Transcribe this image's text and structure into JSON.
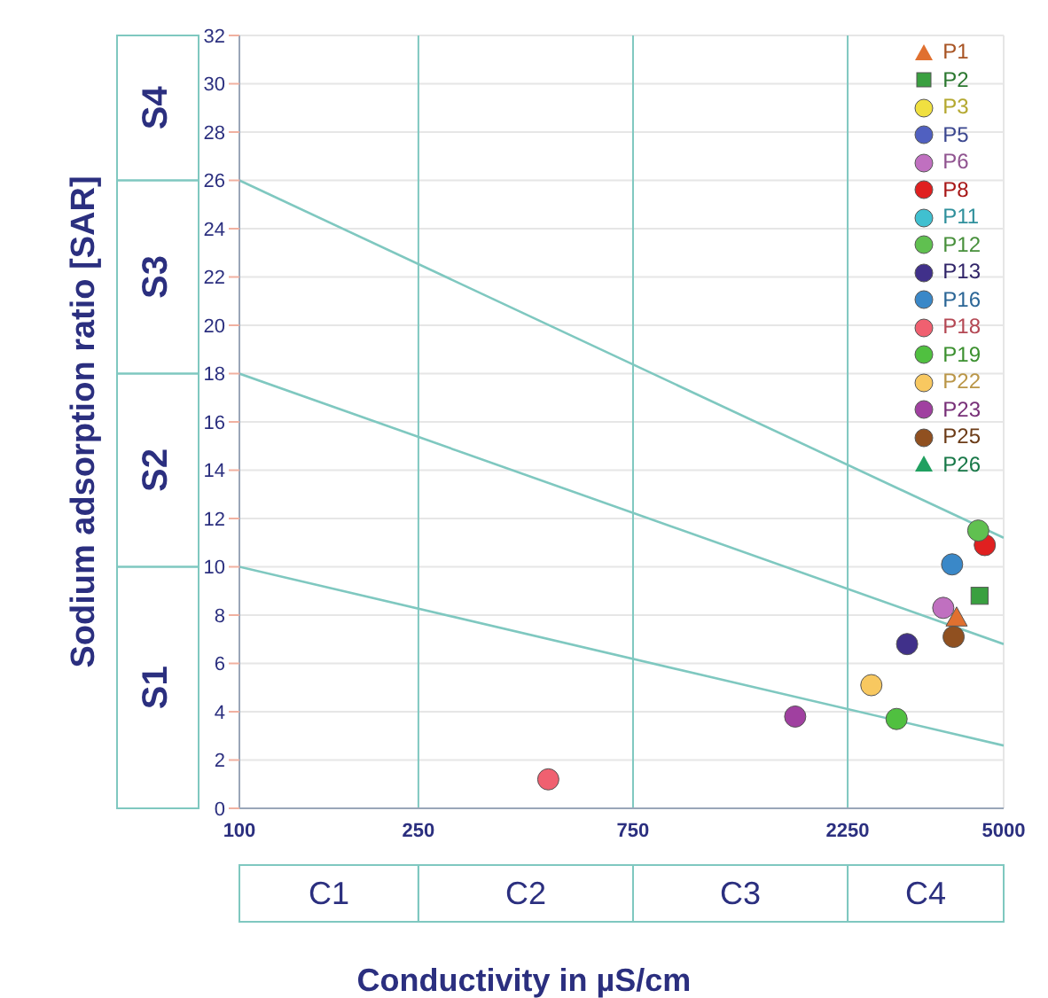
{
  "chart_data": {
    "type": "scatter",
    "xlabel": "Conductivity in µS/cm",
    "ylabel": "Sodium adsorption ratio [SAR]",
    "log": "x",
    "grid": "y",
    "legend": "top right",
    "xlim": [
      100,
      5000
    ],
    "xticks": [
      100,
      250,
      750,
      2250,
      5000
    ],
    "ylim": [
      0,
      32
    ],
    "yticks": [
      0,
      2,
      4,
      6,
      8,
      10,
      12,
      14,
      16,
      18,
      20,
      22,
      24,
      26,
      28,
      30,
      32
    ],
    "series": [
      {
        "name": "P1",
        "color": "#e07030",
        "marker": "triangle",
        "x": [
          3930
        ],
        "values": [
          7.9
        ]
      },
      {
        "name": "P2",
        "color": "#3aa040",
        "marker": "square",
        "x": [
          4420
        ],
        "values": [
          8.8
        ]
      },
      {
        "name": "P3",
        "color": "#f0e040",
        "x": [
          null
        ],
        "values": [
          null
        ]
      },
      {
        "name": "P5",
        "color": "#5060c0",
        "marker": "circle",
        "x": [
          null
        ],
        "values": [
          null
        ]
      },
      {
        "name": "P6",
        "color": "#c070c0",
        "marker": "circle",
        "x": [
          3670
        ],
        "values": [
          8.3
        ]
      },
      {
        "name": "P8",
        "color": "#e02020",
        "marker": "circle",
        "x": [
          4540
        ],
        "values": [
          10.9
        ]
      },
      {
        "name": "P11",
        "color": "#40c0d0",
        "marker": "circle",
        "x": [
          null
        ],
        "values": [
          null
        ]
      },
      {
        "name": "P12",
        "color": "#60c050",
        "marker": "circle",
        "x": [
          4390
        ],
        "values": [
          11.5
        ]
      },
      {
        "name": "P13",
        "color": "#40308a",
        "marker": "circle",
        "x": [
          3050
        ],
        "values": [
          6.8
        ]
      },
      {
        "name": "P16",
        "color": "#3a88c8",
        "marker": "circle",
        "x": [
          3840
        ],
        "values": [
          10.1
        ]
      },
      {
        "name": "P18",
        "color": "#f06070",
        "marker": "circle",
        "x": [
          486
        ],
        "values": [
          1.2
        ]
      },
      {
        "name": "P19",
        "color": "#50c040",
        "marker": "circle",
        "x": [
          2890
        ],
        "values": [
          3.7
        ]
      },
      {
        "name": "P22",
        "color": "#f8c860",
        "marker": "circle",
        "x": [
          2540
        ],
        "values": [
          5.1
        ]
      },
      {
        "name": "P23",
        "color": "#a040a0",
        "marker": "circle",
        "x": [
          1720
        ],
        "values": [
          3.8
        ]
      },
      {
        "name": "P25",
        "color": "#905020",
        "marker": "circle",
        "x": [
          3870
        ],
        "values": [
          7.1
        ]
      },
      {
        "name": "P26",
        "color": "#20a060",
        "marker": "triangle",
        "x": [
          null
        ],
        "values": [
          null
        ]
      },
      {
        "type": "line",
        "color": "#7fc8c0",
        "x": [
          100,
          5000
        ],
        "values": [
          26,
          11.2
        ]
      },
      {
        "type": "line",
        "color": "#7fc8c0",
        "x": [
          100,
          5000
        ],
        "values": [
          18,
          6.8
        ]
      },
      {
        "type": "line",
        "color": "#7fc8c0",
        "x": [
          100,
          5000
        ],
        "values": [
          10,
          2.6
        ]
      }
    ],
    "ref_lines": [
      {
        "axis": "x",
        "value": 250,
        "color": "#7fc8c0"
      },
      {
        "axis": "x",
        "value": 750,
        "color": "#7fc8c0"
      },
      {
        "axis": "x",
        "value": 2250,
        "color": "#7fc8c0"
      }
    ],
    "annotations": [
      "S1",
      "S2",
      "S3",
      "S4",
      "C1",
      "C2",
      "C3",
      "C4"
    ]
  }
}
